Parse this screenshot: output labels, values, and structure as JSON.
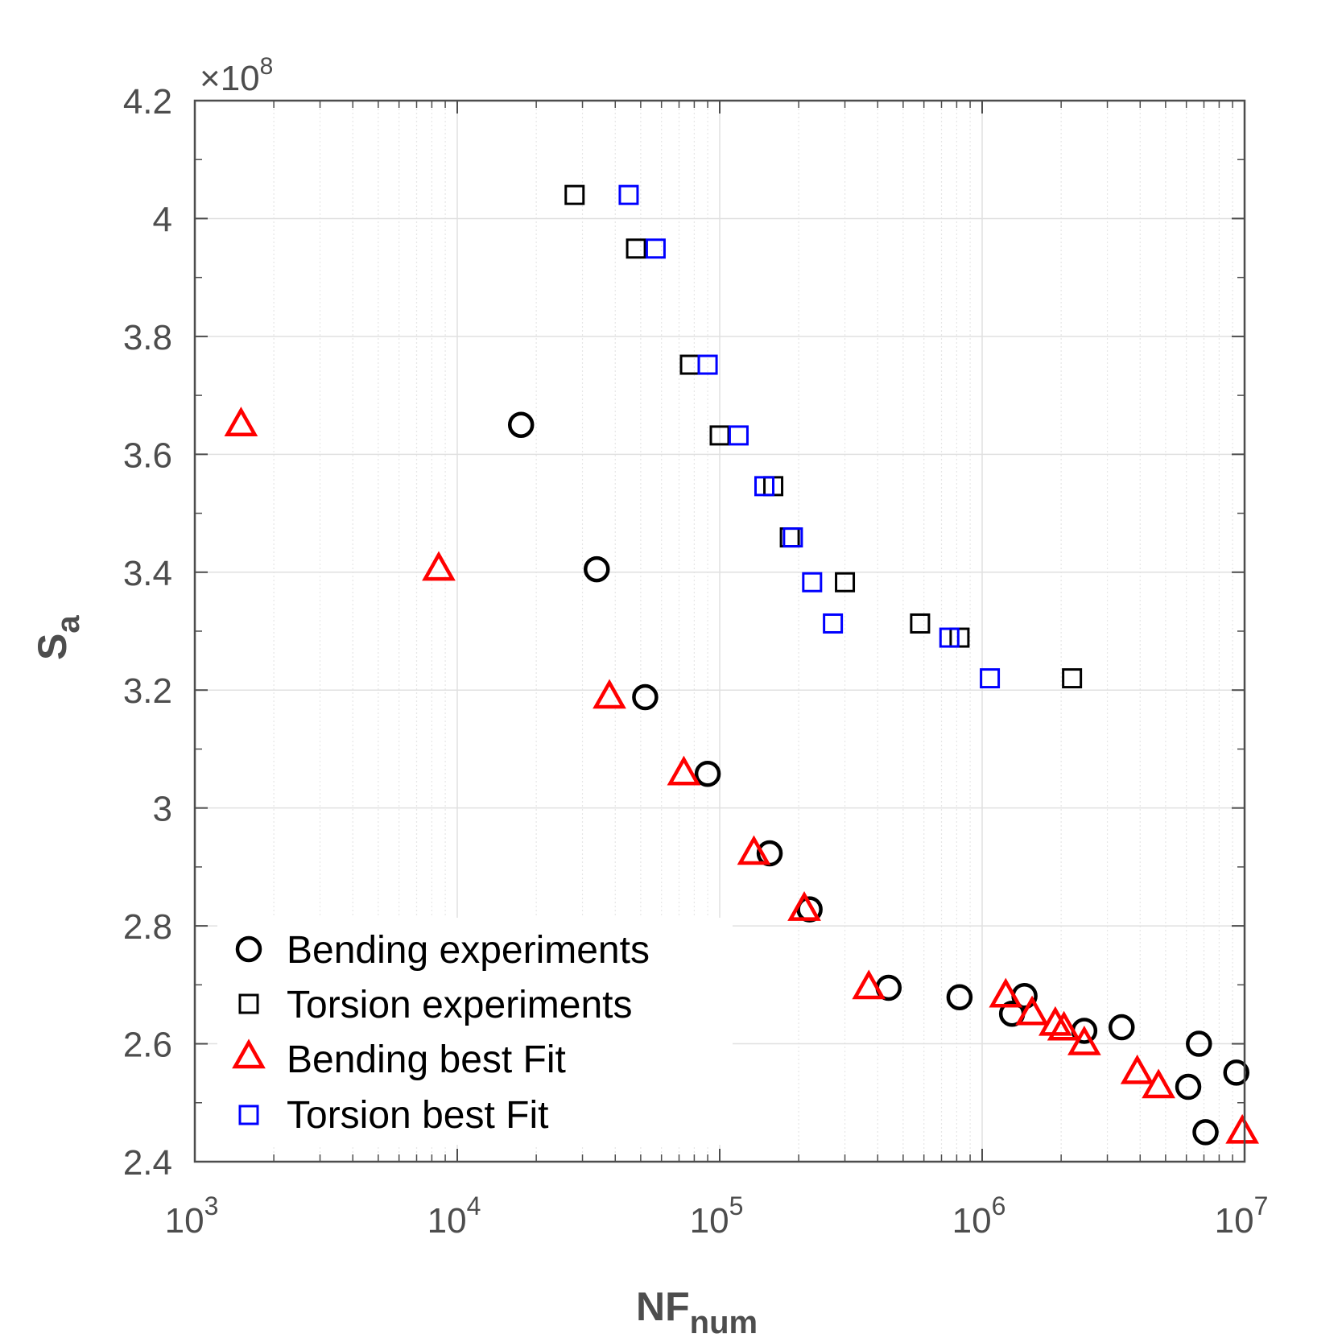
{
  "chart_data": {
    "type": "scatter",
    "title": "",
    "xlabel": {
      "main": "NF",
      "sub": "num"
    },
    "ylabel": {
      "main": "S",
      "sub": "a"
    },
    "x_scale": "log",
    "xlim": [
      1000,
      10000000
    ],
    "ylim": [
      240000000,
      420000000
    ],
    "y_multiplier": {
      "symbol": "×",
      "base": "10",
      "exponent": "8"
    },
    "grid": true,
    "legend_position": "bottom-left",
    "x_ticks": [
      {
        "value": 1000,
        "base": "10",
        "exp": "3"
      },
      {
        "value": 10000,
        "base": "10",
        "exp": "4"
      },
      {
        "value": 100000,
        "base": "10",
        "exp": "5"
      },
      {
        "value": 1000000,
        "base": "10",
        "exp": "6"
      },
      {
        "value": 10000000,
        "base": "10",
        "exp": "7"
      }
    ],
    "y_ticks": [
      {
        "value": 240000000,
        "label": "2.4"
      },
      {
        "value": 260000000,
        "label": "2.6"
      },
      {
        "value": 280000000,
        "label": "2.8"
      },
      {
        "value": 300000000,
        "label": "3"
      },
      {
        "value": 320000000,
        "label": "3.2"
      },
      {
        "value": 340000000,
        "label": "3.4"
      },
      {
        "value": 360000000,
        "label": "3.6"
      },
      {
        "value": 380000000,
        "label": "3.8"
      },
      {
        "value": 400000000,
        "label": "4"
      },
      {
        "value": 420000000,
        "label": "4.2"
      }
    ],
    "series": [
      {
        "name": "Bending experiments",
        "marker": "circle",
        "color": "#000000",
        "points": [
          {
            "x": 17500,
            "y": 365000000
          },
          {
            "x": 34000,
            "y": 340500000
          },
          {
            "x": 52000,
            "y": 318800000
          },
          {
            "x": 90000,
            "y": 305800000
          },
          {
            "x": 155000,
            "y": 292300000
          },
          {
            "x": 220000,
            "y": 282800000
          },
          {
            "x": 440000,
            "y": 269500000
          },
          {
            "x": 820000,
            "y": 267900000
          },
          {
            "x": 1300000,
            "y": 265100000
          },
          {
            "x": 1450000,
            "y": 268100000
          },
          {
            "x": 2450000,
            "y": 262200000
          },
          {
            "x": 3400000,
            "y": 262800000
          },
          {
            "x": 6100000,
            "y": 252700000
          },
          {
            "x": 6700000,
            "y": 260000000
          },
          {
            "x": 7100000,
            "y": 245000000
          },
          {
            "x": 9300000,
            "y": 255100000
          }
        ]
      },
      {
        "name": "Torsion experiments",
        "marker": "square",
        "color": "#000000",
        "points": [
          {
            "x": 28000,
            "y": 404000000
          },
          {
            "x": 48000,
            "y": 394900000
          },
          {
            "x": 77000,
            "y": 375200000
          },
          {
            "x": 100000,
            "y": 363200000
          },
          {
            "x": 160000,
            "y": 354600000
          },
          {
            "x": 185000,
            "y": 345900000
          },
          {
            "x": 300000,
            "y": 338300000
          },
          {
            "x": 580000,
            "y": 331300000
          },
          {
            "x": 820000,
            "y": 328900000
          },
          {
            "x": 2200000,
            "y": 322000000
          }
        ]
      },
      {
        "name": "Bending best Fit",
        "marker": "triangle",
        "color": "#ff0000",
        "points": [
          {
            "x": 1500,
            "y": 365000000
          },
          {
            "x": 8500,
            "y": 340500000
          },
          {
            "x": 38000,
            "y": 318800000
          },
          {
            "x": 73000,
            "y": 305800000
          },
          {
            "x": 135000,
            "y": 292300000
          },
          {
            "x": 210000,
            "y": 282800000
          },
          {
            "x": 370000,
            "y": 269500000
          },
          {
            "x": 1230000,
            "y": 268100000
          },
          {
            "x": 1550000,
            "y": 265100000
          },
          {
            "x": 1900000,
            "y": 263300000
          },
          {
            "x": 2050000,
            "y": 262500000
          },
          {
            "x": 2450000,
            "y": 260000000
          },
          {
            "x": 3900000,
            "y": 255100000
          },
          {
            "x": 4700000,
            "y": 252700000
          },
          {
            "x": 9800000,
            "y": 245000000
          }
        ]
      },
      {
        "name": "Torsion best Fit",
        "marker": "square",
        "color": "#0000ff",
        "points": [
          {
            "x": 45000,
            "y": 404000000
          },
          {
            "x": 57000,
            "y": 394900000
          },
          {
            "x": 90000,
            "y": 375200000
          },
          {
            "x": 118000,
            "y": 363200000
          },
          {
            "x": 148000,
            "y": 354600000
          },
          {
            "x": 190000,
            "y": 345900000
          },
          {
            "x": 225000,
            "y": 338300000
          },
          {
            "x": 270000,
            "y": 331300000
          },
          {
            "x": 750000,
            "y": 328900000
          },
          {
            "x": 1070000,
            "y": 322000000
          }
        ]
      }
    ]
  }
}
